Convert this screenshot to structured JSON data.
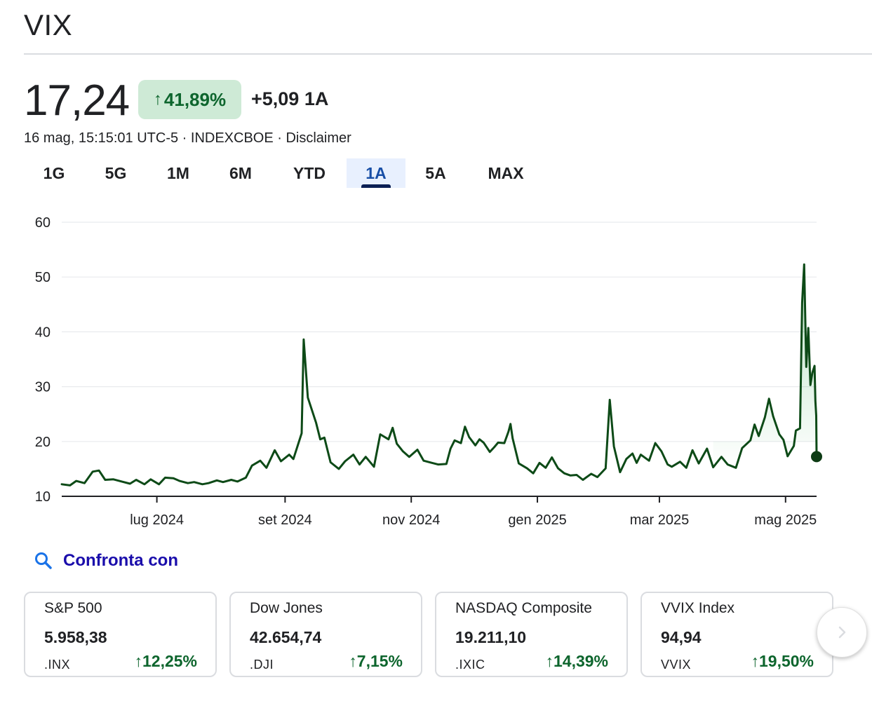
{
  "header": {
    "title": "VIX"
  },
  "quote": {
    "price": "17,24",
    "change_pct": "41,89%",
    "change_abs": "+5,09 1A",
    "meta": "16 mag, 15:15:01 UTC-5 · INDEXCBOE · Disclaimer"
  },
  "range_tabs": {
    "items": [
      {
        "label": "1G"
      },
      {
        "label": "5G"
      },
      {
        "label": "1M"
      },
      {
        "label": "6M"
      },
      {
        "label": "YTD"
      },
      {
        "label": "1A"
      },
      {
        "label": "5A"
      },
      {
        "label": "MAX"
      }
    ],
    "active": "1A"
  },
  "compare": {
    "label": "Confronta con",
    "icon": "search-icon"
  },
  "cards": [
    {
      "name": "S&P 500",
      "value": "5.958,38",
      "ticker": ".INX",
      "change": "12,25%"
    },
    {
      "name": "Dow Jones",
      "value": "42.654,74",
      "ticker": ".DJI",
      "change": "7,15%"
    },
    {
      "name": "NASDAQ Composite",
      "value": "19.211,10",
      "ticker": ".IXIC",
      "change": "14,39%"
    },
    {
      "name": "VVIX Index",
      "value": "94,94",
      "ticker": "VVIX",
      "change": "19,50%"
    }
  ],
  "next_button": {
    "icon": "chevron-right-icon"
  },
  "colors": {
    "accent_green": "#0d652d",
    "line": "#0d4a17",
    "positive_bg": "#ceead6",
    "active_tab_bg": "#e8f0fe",
    "link_blue": "#1a0dab"
  },
  "chart_data": {
    "type": "line",
    "ylim": [
      10,
      60
    ],
    "yticks": [
      10,
      20,
      30,
      40,
      50,
      60
    ],
    "x_range": [
      "2024-05-16",
      "2025-05-16"
    ],
    "x_ticks": [
      {
        "label": "lug 2024",
        "date": "2024-07-01"
      },
      {
        "label": "set 2024",
        "date": "2024-09-01"
      },
      {
        "label": "nov 2024",
        "date": "2024-11-01"
      },
      {
        "label": "gen 2025",
        "date": "2025-01-01"
      },
      {
        "label": "mar 2025",
        "date": "2025-03-01"
      },
      {
        "label": "mag 2025",
        "date": "2025-05-01"
      }
    ],
    "grid": true,
    "series": [
      {
        "points": [
          [
            "2024-05-16",
            12.2
          ],
          [
            "2024-05-20",
            12.0
          ],
          [
            "2024-05-23",
            12.8
          ],
          [
            "2024-05-27",
            12.4
          ],
          [
            "2024-05-31",
            14.5
          ],
          [
            "2024-06-03",
            14.7
          ],
          [
            "2024-06-06",
            13.0
          ],
          [
            "2024-06-10",
            13.1
          ],
          [
            "2024-06-14",
            12.7
          ],
          [
            "2024-06-18",
            12.3
          ],
          [
            "2024-06-21",
            13.0
          ],
          [
            "2024-06-25",
            12.2
          ],
          [
            "2024-06-28",
            13.1
          ],
          [
            "2024-07-02",
            12.2
          ],
          [
            "2024-07-05",
            13.4
          ],
          [
            "2024-07-09",
            13.3
          ],
          [
            "2024-07-12",
            12.8
          ],
          [
            "2024-07-16",
            12.4
          ],
          [
            "2024-07-19",
            12.6
          ],
          [
            "2024-07-23",
            12.2
          ],
          [
            "2024-07-26",
            12.4
          ],
          [
            "2024-07-30",
            12.9
          ],
          [
            "2024-08-02",
            12.6
          ],
          [
            "2024-08-06",
            13.0
          ],
          [
            "2024-08-09",
            12.7
          ],
          [
            "2024-08-13",
            13.4
          ],
          [
            "2024-08-16",
            15.6
          ],
          [
            "2024-08-20",
            16.5
          ],
          [
            "2024-08-23",
            15.2
          ],
          [
            "2024-08-27",
            18.4
          ],
          [
            "2024-08-30",
            16.4
          ],
          [
            "2024-09-03",
            17.6
          ],
          [
            "2024-09-05",
            16.8
          ],
          [
            "2024-09-09",
            21.5
          ],
          [
            "2024-09-10",
            38.6
          ],
          [
            "2024-09-12",
            28.0
          ],
          [
            "2024-09-16",
            23.4
          ],
          [
            "2024-09-18",
            20.4
          ],
          [
            "2024-09-20",
            20.7
          ],
          [
            "2024-09-23",
            16.2
          ],
          [
            "2024-09-27",
            15.0
          ],
          [
            "2024-09-30",
            16.4
          ],
          [
            "2024-10-04",
            17.6
          ],
          [
            "2024-10-07",
            15.8
          ],
          [
            "2024-10-10",
            17.2
          ],
          [
            "2024-10-14",
            15.4
          ],
          [
            "2024-10-17",
            21.3
          ],
          [
            "2024-10-21",
            20.4
          ],
          [
            "2024-10-23",
            22.5
          ],
          [
            "2024-10-25",
            19.6
          ],
          [
            "2024-10-28",
            18.2
          ],
          [
            "2024-10-31",
            17.2
          ],
          [
            "2024-11-04",
            18.5
          ],
          [
            "2024-11-07",
            16.5
          ],
          [
            "2024-11-11",
            16.1
          ],
          [
            "2024-11-14",
            15.8
          ],
          [
            "2024-11-18",
            15.9
          ],
          [
            "2024-11-20",
            18.7
          ],
          [
            "2024-11-22",
            20.2
          ],
          [
            "2024-11-25",
            19.7
          ],
          [
            "2024-11-27",
            22.7
          ],
          [
            "2024-11-29",
            20.8
          ],
          [
            "2024-12-02",
            19.3
          ],
          [
            "2024-12-04",
            20.4
          ],
          [
            "2024-12-06",
            19.8
          ],
          [
            "2024-12-09",
            18.1
          ],
          [
            "2024-12-11",
            18.9
          ],
          [
            "2024-12-13",
            19.8
          ],
          [
            "2024-12-16",
            19.7
          ],
          [
            "2024-12-18",
            21.8
          ],
          [
            "2024-12-19",
            23.2
          ],
          [
            "2024-12-20",
            20.6
          ],
          [
            "2024-12-23",
            16.0
          ],
          [
            "2024-12-27",
            15.1
          ],
          [
            "2024-12-30",
            14.2
          ],
          [
            "2025-01-02",
            16.1
          ],
          [
            "2025-01-05",
            15.2
          ],
          [
            "2025-01-08",
            17.1
          ],
          [
            "2025-01-11",
            15.1
          ],
          [
            "2025-01-14",
            14.2
          ],
          [
            "2025-01-17",
            13.8
          ],
          [
            "2025-01-20",
            13.9
          ],
          [
            "2025-01-23",
            13.0
          ],
          [
            "2025-01-27",
            14.1
          ],
          [
            "2025-01-30",
            13.5
          ],
          [
            "2025-02-03",
            15.1
          ],
          [
            "2025-02-05",
            27.6
          ],
          [
            "2025-02-07",
            19.1
          ],
          [
            "2025-02-10",
            14.4
          ],
          [
            "2025-02-13",
            16.8
          ],
          [
            "2025-02-16",
            17.8
          ],
          [
            "2025-02-18",
            16.1
          ],
          [
            "2025-02-20",
            17.6
          ],
          [
            "2025-02-24",
            16.5
          ],
          [
            "2025-02-27",
            19.7
          ],
          [
            "2025-03-02",
            18.2
          ],
          [
            "2025-03-05",
            15.8
          ],
          [
            "2025-03-07",
            15.4
          ],
          [
            "2025-03-11",
            16.3
          ],
          [
            "2025-03-14",
            15.2
          ],
          [
            "2025-03-17",
            18.4
          ],
          [
            "2025-03-20",
            16.0
          ],
          [
            "2025-03-24",
            18.7
          ],
          [
            "2025-03-27",
            15.3
          ],
          [
            "2025-03-31",
            17.2
          ],
          [
            "2025-04-03",
            15.8
          ],
          [
            "2025-04-07",
            15.2
          ],
          [
            "2025-04-10",
            18.8
          ],
          [
            "2025-04-14",
            20.2
          ],
          [
            "2025-04-16",
            23.1
          ],
          [
            "2025-04-18",
            21.0
          ],
          [
            "2025-04-21",
            24.4
          ],
          [
            "2025-04-23",
            27.8
          ],
          [
            "2025-04-25",
            24.6
          ],
          [
            "2025-04-28",
            21.3
          ],
          [
            "2025-04-30",
            20.3
          ],
          [
            "2025-05-02",
            17.3
          ],
          [
            "2025-05-05",
            19.2
          ],
          [
            "2025-05-06",
            22.0
          ],
          [
            "2025-05-08",
            22.4
          ],
          [
            "2025-05-09",
            45.3
          ],
          [
            "2025-05-10",
            52.3
          ],
          [
            "2025-05-11",
            33.6
          ],
          [
            "2025-05-12",
            40.7
          ],
          [
            "2025-05-13",
            30.3
          ],
          [
            "2025-05-14",
            32.6
          ],
          [
            "2025-05-15",
            33.8
          ],
          [
            "2025-05-15",
            27.4
          ],
          [
            "2025-05-15",
            24.7
          ],
          [
            "2025-05-16",
            17.24
          ]
        ]
      }
    ]
  }
}
